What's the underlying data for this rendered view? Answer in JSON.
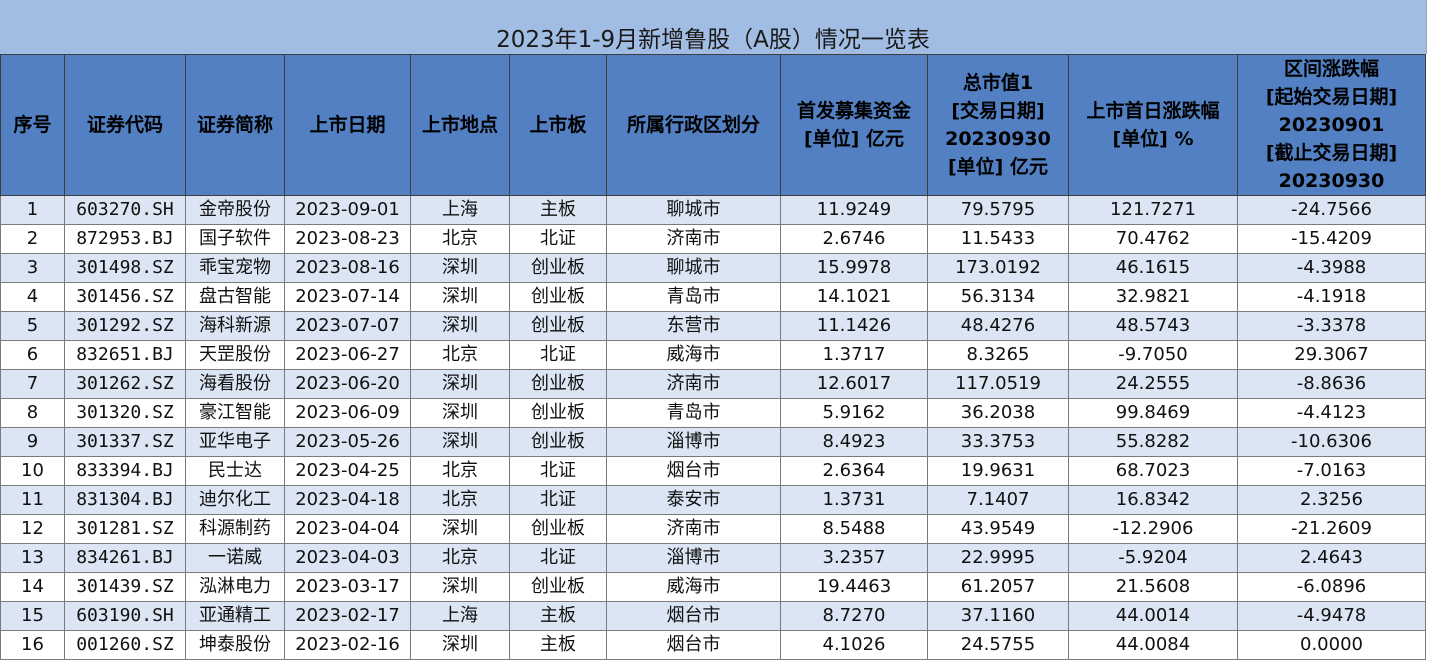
{
  "sheet": {
    "title": "2023年1-9月新增鲁股（A股）情况一览表"
  },
  "headers": [
    [
      "序号"
    ],
    [
      "证券代码"
    ],
    [
      "证券简称"
    ],
    [
      "上市日期"
    ],
    [
      "上市地点"
    ],
    [
      "上市板"
    ],
    [
      "所属行政区划分"
    ],
    [
      "首发募集资金",
      "[单位] 亿元"
    ],
    [
      "总市值1",
      "[交易日期]",
      "20230930",
      "[单位] 亿元"
    ],
    [
      "上市首日涨跌幅",
      "[单位] %"
    ],
    [
      "区间涨跌幅",
      "[起始交易日期]",
      "20230901",
      "[截止交易日期]",
      "20230930"
    ]
  ],
  "rows": [
    [
      "1",
      "603270.SH",
      "金帝股份",
      "2023-09-01",
      "上海",
      "主板",
      "聊城市",
      "11.9249",
      "79.5795",
      "121.7271",
      "-24.7566"
    ],
    [
      "2",
      "872953.BJ",
      "国子软件",
      "2023-08-23",
      "北京",
      "北证",
      "济南市",
      "2.6746",
      "11.5433",
      "70.4762",
      "-15.4209"
    ],
    [
      "3",
      "301498.SZ",
      "乖宝宠物",
      "2023-08-16",
      "深圳",
      "创业板",
      "聊城市",
      "15.9978",
      "173.0192",
      "46.1615",
      "-4.3988"
    ],
    [
      "4",
      "301456.SZ",
      "盘古智能",
      "2023-07-14",
      "深圳",
      "创业板",
      "青岛市",
      "14.1021",
      "56.3134",
      "32.9821",
      "-4.1918"
    ],
    [
      "5",
      "301292.SZ",
      "海科新源",
      "2023-07-07",
      "深圳",
      "创业板",
      "东营市",
      "11.1426",
      "48.4276",
      "48.5743",
      "-3.3378"
    ],
    [
      "6",
      "832651.BJ",
      "天罡股份",
      "2023-06-27",
      "北京",
      "北证",
      "威海市",
      "1.3717",
      "8.3265",
      "-9.7050",
      "29.3067"
    ],
    [
      "7",
      "301262.SZ",
      "海看股份",
      "2023-06-20",
      "深圳",
      "创业板",
      "济南市",
      "12.6017",
      "117.0519",
      "24.2555",
      "-8.8636"
    ],
    [
      "8",
      "301320.SZ",
      "豪江智能",
      "2023-06-09",
      "深圳",
      "创业板",
      "青岛市",
      "5.9162",
      "36.2038",
      "99.8469",
      "-4.4123"
    ],
    [
      "9",
      "301337.SZ",
      "亚华电子",
      "2023-05-26",
      "深圳",
      "创业板",
      "淄博市",
      "8.4923",
      "33.3753",
      "55.8282",
      "-10.6306"
    ],
    [
      "10",
      "833394.BJ",
      "民士达",
      "2023-04-25",
      "北京",
      "北证",
      "烟台市",
      "2.6364",
      "19.9631",
      "68.7023",
      "-7.0163"
    ],
    [
      "11",
      "831304.BJ",
      "迪尔化工",
      "2023-04-18",
      "北京",
      "北证",
      "泰安市",
      "1.3731",
      "7.1407",
      "16.8342",
      "2.3256"
    ],
    [
      "12",
      "301281.SZ",
      "科源制药",
      "2023-04-04",
      "深圳",
      "创业板",
      "济南市",
      "8.5488",
      "43.9549",
      "-12.2906",
      "-21.2609"
    ],
    [
      "13",
      "834261.BJ",
      "一诺威",
      "2023-04-03",
      "北京",
      "北证",
      "淄博市",
      "3.2357",
      "22.9995",
      "-5.9204",
      "2.4643"
    ],
    [
      "14",
      "301439.SZ",
      "泓淋电力",
      "2023-03-17",
      "深圳",
      "创业板",
      "威海市",
      "19.4463",
      "61.2057",
      "21.5608",
      "-6.0896"
    ],
    [
      "15",
      "603190.SH",
      "亚通精工",
      "2023-02-17",
      "上海",
      "主板",
      "烟台市",
      "8.7270",
      "37.1160",
      "44.0014",
      "-4.9478"
    ],
    [
      "16",
      "001260.SZ",
      "坤泰股份",
      "2023-02-16",
      "深圳",
      "主板",
      "烟台市",
      "4.1026",
      "24.5755",
      "44.0084",
      "0.0000"
    ]
  ]
}
